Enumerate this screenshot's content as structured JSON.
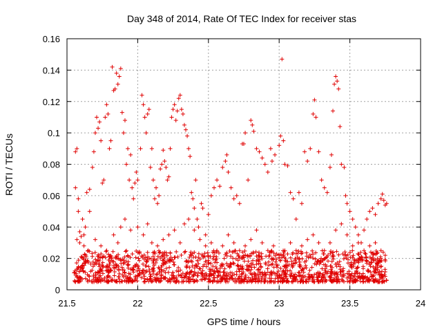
{
  "chart_data": {
    "type": "scatter",
    "title": "Day 348 of 2014, Rate Of TEC Index for receiver stas",
    "xlabel": "GPS time / hours",
    "ylabel": "ROTI / TECUs",
    "xlim": [
      21.5,
      24
    ],
    "ylim": [
      0,
      0.16
    ],
    "grid": true,
    "marker": "+",
    "color": "#e00000",
    "x_ticks": [
      21.5,
      22,
      22.5,
      23,
      23.5,
      24
    ],
    "x_tick_labels": [
      "21.5",
      "22",
      "22.5",
      "23",
      "23.5",
      "24"
    ],
    "y_ticks": [
      0,
      0.02,
      0.04,
      0.06,
      0.08,
      0.1,
      0.12,
      0.14,
      0.16
    ],
    "y_tick_labels": [
      "0",
      "0.02",
      "0.04",
      "0.06",
      "0.08",
      "0.1",
      "0.12",
      "0.14",
      "0.16"
    ],
    "series": [
      {
        "name": "ROTI",
        "points": [
          [
            21.56,
            0.065
          ],
          [
            21.56,
            0.088
          ],
          [
            21.57,
            0.09
          ],
          [
            21.58,
            0.058
          ],
          [
            21.58,
            0.05
          ],
          [
            21.59,
            0.03
          ],
          [
            21.6,
            0.034
          ],
          [
            21.61,
            0.045
          ],
          [
            21.62,
            0.035
          ],
          [
            21.63,
            0.04
          ],
          [
            21.64,
            0.062
          ],
          [
            21.66,
            0.05
          ],
          [
            21.66,
            0.064
          ],
          [
            21.68,
            0.078
          ],
          [
            21.69,
            0.088
          ],
          [
            21.7,
            0.1
          ],
          [
            21.71,
            0.11
          ],
          [
            21.72,
            0.103
          ],
          [
            21.73,
            0.107
          ],
          [
            21.74,
            0.095
          ],
          [
            21.75,
            0.068
          ],
          [
            21.76,
            0.07
          ],
          [
            21.77,
            0.11
          ],
          [
            21.78,
            0.118
          ],
          [
            21.79,
            0.112
          ],
          [
            21.8,
            0.09
          ],
          [
            21.81,
            0.095
          ],
          [
            21.82,
            0.142
          ],
          [
            21.83,
            0.127
          ],
          [
            21.84,
            0.128
          ],
          [
            21.85,
            0.138
          ],
          [
            21.86,
            0.131
          ],
          [
            21.87,
            0.136
          ],
          [
            21.88,
            0.141
          ],
          [
            21.89,
            0.113
          ],
          [
            21.9,
            0.1
          ],
          [
            21.91,
            0.108
          ],
          [
            21.92,
            0.08
          ],
          [
            21.93,
            0.09
          ],
          [
            21.94,
            0.07
          ],
          [
            21.95,
            0.086
          ],
          [
            21.96,
            0.065
          ],
          [
            21.97,
            0.058
          ],
          [
            21.98,
            0.068
          ],
          [
            21.99,
            0.075
          ],
          [
            22.0,
            0.07
          ],
          [
            22.02,
            0.09
          ],
          [
            22.03,
            0.124
          ],
          [
            22.04,
            0.118
          ],
          [
            22.05,
            0.11
          ],
          [
            22.06,
            0.1
          ],
          [
            22.07,
            0.112
          ],
          [
            22.08,
            0.115
          ],
          [
            22.09,
            0.078
          ],
          [
            22.1,
            0.09
          ],
          [
            22.11,
            0.07
          ],
          [
            22.12,
            0.058
          ],
          [
            22.13,
            0.065
          ],
          [
            22.14,
            0.055
          ],
          [
            22.15,
            0.06
          ],
          [
            22.16,
            0.077
          ],
          [
            22.17,
            0.08
          ],
          [
            22.18,
            0.089
          ],
          [
            22.19,
            0.082
          ],
          [
            22.2,
            0.078
          ],
          [
            22.21,
            0.07
          ],
          [
            22.22,
            0.072
          ],
          [
            22.23,
            0.09
          ],
          [
            22.24,
            0.11
          ],
          [
            22.25,
            0.115
          ],
          [
            22.26,
            0.118
          ],
          [
            22.27,
            0.108
          ],
          [
            22.28,
            0.114
          ],
          [
            22.29,
            0.122
          ],
          [
            22.3,
            0.124
          ],
          [
            22.31,
            0.115
          ],
          [
            22.32,
            0.112
          ],
          [
            22.33,
            0.105
          ],
          [
            22.34,
            0.102
          ],
          [
            22.35,
            0.098
          ],
          [
            22.36,
            0.09
          ],
          [
            22.37,
            0.085
          ],
          [
            22.38,
            0.062
          ],
          [
            22.39,
            0.058
          ],
          [
            22.4,
            0.052
          ],
          [
            22.41,
            0.07
          ],
          [
            22.42,
            0.045
          ],
          [
            22.43,
            0.04
          ],
          [
            22.45,
            0.055
          ],
          [
            22.46,
            0.052
          ],
          [
            22.48,
            0.035
          ],
          [
            22.5,
            0.048
          ],
          [
            22.52,
            0.06
          ],
          [
            22.54,
            0.065
          ],
          [
            22.56,
            0.07
          ],
          [
            22.58,
            0.066
          ],
          [
            22.6,
            0.078
          ],
          [
            22.62,
            0.082
          ],
          [
            22.63,
            0.086
          ],
          [
            22.64,
            0.075
          ],
          [
            22.66,
            0.065
          ],
          [
            22.68,
            0.058
          ],
          [
            22.7,
            0.06
          ],
          [
            22.72,
            0.055
          ],
          [
            22.74,
            0.093
          ],
          [
            22.75,
            0.093
          ],
          [
            22.76,
            0.1
          ],
          [
            22.78,
            0.07
          ],
          [
            22.8,
            0.108
          ],
          [
            22.81,
            0.105
          ],
          [
            22.82,
            0.101
          ],
          [
            22.84,
            0.09
          ],
          [
            22.86,
            0.088
          ],
          [
            22.88,
            0.084
          ],
          [
            22.9,
            0.08
          ],
          [
            22.92,
            0.075
          ],
          [
            22.94,
            0.09
          ],
          [
            22.95,
            0.082
          ],
          [
            22.97,
            0.086
          ],
          [
            23.0,
            0.092
          ],
          [
            23.01,
            0.098
          ],
          [
            23.02,
            0.147
          ],
          [
            23.03,
            0.095
          ],
          [
            23.04,
            0.08
          ],
          [
            23.06,
            0.079
          ],
          [
            23.08,
            0.062
          ],
          [
            23.1,
            0.058
          ],
          [
            23.12,
            0.045
          ],
          [
            23.14,
            0.062
          ],
          [
            23.16,
            0.055
          ],
          [
            23.18,
            0.088
          ],
          [
            23.2,
            0.082
          ],
          [
            23.22,
            0.09
          ],
          [
            23.24,
            0.112
          ],
          [
            23.25,
            0.121
          ],
          [
            23.26,
            0.11
          ],
          [
            23.28,
            0.088
          ],
          [
            23.3,
            0.07
          ],
          [
            23.32,
            0.065
          ],
          [
            23.34,
            0.062
          ],
          [
            23.36,
            0.078
          ],
          [
            23.37,
            0.086
          ],
          [
            23.38,
            0.114
          ],
          [
            23.39,
            0.131
          ],
          [
            23.4,
            0.136
          ],
          [
            23.41,
            0.133
          ],
          [
            23.42,
            0.128
          ],
          [
            23.43,
            0.104
          ],
          [
            23.44,
            0.08
          ],
          [
            23.46,
            0.078
          ],
          [
            23.47,
            0.06
          ],
          [
            23.48,
            0.055
          ],
          [
            23.5,
            0.05
          ],
          [
            23.52,
            0.045
          ],
          [
            23.54,
            0.04
          ],
          [
            23.56,
            0.035
          ],
          [
            23.58,
            0.03
          ],
          [
            23.6,
            0.038
          ],
          [
            23.62,
            0.045
          ],
          [
            23.64,
            0.05
          ],
          [
            23.66,
            0.052
          ],
          [
            23.68,
            0.048
          ],
          [
            23.7,
            0.055
          ],
          [
            23.72,
            0.058
          ],
          [
            23.73,
            0.061
          ],
          [
            23.74,
            0.057
          ],
          [
            23.75,
            0.054
          ],
          [
            23.76,
            0.055
          ],
          [
            23.72,
            0.01
          ],
          [
            23.73,
            0.005
          ],
          [
            21.57,
            0.032
          ],
          [
            21.59,
            0.037
          ],
          [
            21.62,
            0.028
          ],
          [
            21.65,
            0.025
          ],
          [
            21.7,
            0.032
          ],
          [
            21.74,
            0.028
          ],
          [
            21.78,
            0.025
          ],
          [
            21.83,
            0.035
          ],
          [
            21.86,
            0.03
          ],
          [
            21.88,
            0.04
          ],
          [
            21.91,
            0.045
          ],
          [
            21.95,
            0.038
          ],
          [
            22.0,
            0.04
          ],
          [
            22.04,
            0.035
          ],
          [
            22.07,
            0.042
          ],
          [
            22.1,
            0.03
          ],
          [
            22.14,
            0.028
          ],
          [
            22.18,
            0.032
          ],
          [
            22.22,
            0.035
          ],
          [
            22.26,
            0.038
          ],
          [
            22.3,
            0.03
          ],
          [
            22.33,
            0.042
          ],
          [
            22.36,
            0.045
          ],
          [
            22.4,
            0.038
          ],
          [
            22.44,
            0.032
          ],
          [
            22.48,
            0.028
          ],
          [
            22.52,
            0.03
          ],
          [
            22.56,
            0.025
          ],
          [
            22.6,
            0.028
          ],
          [
            22.64,
            0.035
          ],
          [
            22.68,
            0.03
          ],
          [
            22.72,
            0.025
          ],
          [
            22.76,
            0.028
          ],
          [
            22.8,
            0.032
          ],
          [
            22.84,
            0.038
          ],
          [
            22.88,
            0.03
          ],
          [
            22.92,
            0.025
          ],
          [
            22.96,
            0.028
          ],
          [
            23.0,
            0.022
          ],
          [
            23.04,
            0.025
          ],
          [
            23.08,
            0.03
          ],
          [
            23.12,
            0.025
          ],
          [
            23.16,
            0.028
          ],
          [
            23.2,
            0.032
          ],
          [
            23.24,
            0.035
          ],
          [
            23.28,
            0.03
          ],
          [
            23.32,
            0.025
          ],
          [
            23.36,
            0.03
          ],
          [
            23.4,
            0.038
          ],
          [
            23.44,
            0.042
          ],
          [
            23.48,
            0.035
          ],
          [
            23.52,
            0.028
          ],
          [
            23.56,
            0.03
          ],
          [
            23.6,
            0.025
          ],
          [
            23.64,
            0.028
          ],
          [
            23.68,
            0.03
          ],
          [
            23.72,
            0.025
          ],
          [
            23.75,
            0.022
          ]
        ]
      }
    ]
  }
}
